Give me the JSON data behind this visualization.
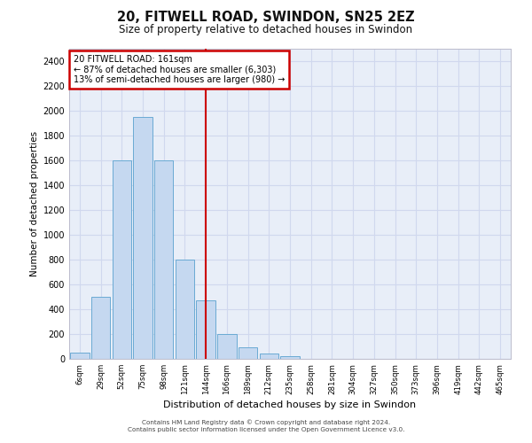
{
  "title1": "20, FITWELL ROAD, SWINDON, SN25 2EZ",
  "title2": "Size of property relative to detached houses in Swindon",
  "xlabel": "Distribution of detached houses by size in Swindon",
  "ylabel": "Number of detached properties",
  "bar_labels": [
    "6sqm",
    "29sqm",
    "52sqm",
    "75sqm",
    "98sqm",
    "121sqm",
    "144sqm",
    "166sqm",
    "189sqm",
    "212sqm",
    "235sqm",
    "258sqm",
    "281sqm",
    "304sqm",
    "327sqm",
    "350sqm",
    "373sqm",
    "396sqm",
    "419sqm",
    "442sqm",
    "465sqm"
  ],
  "bar_values": [
    50,
    500,
    1600,
    1950,
    1600,
    800,
    475,
    200,
    90,
    40,
    25,
    0,
    0,
    0,
    0,
    0,
    0,
    0,
    0,
    0,
    0
  ],
  "bar_color": "#C5D8F0",
  "bar_edge_color": "#6aaad4",
  "grid_color": "#D0D8EE",
  "background_color": "#E8EEF8",
  "red_line_index": 6,
  "annotation_text": "20 FITWELL ROAD: 161sqm\n← 87% of detached houses are smaller (6,303)\n13% of semi-detached houses are larger (980) →",
  "annotation_box_color": "#ffffff",
  "annotation_border_color": "#cc0000",
  "footer1": "Contains HM Land Registry data © Crown copyright and database right 2024.",
  "footer2": "Contains public sector information licensed under the Open Government Licence v3.0.",
  "ylim": [
    0,
    2500
  ],
  "yticks": [
    0,
    200,
    400,
    600,
    800,
    1000,
    1200,
    1400,
    1600,
    1800,
    2000,
    2200,
    2400
  ]
}
